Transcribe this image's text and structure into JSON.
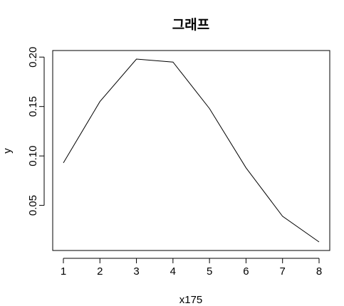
{
  "chart_data": {
    "type": "line",
    "title": "그래프",
    "xlabel": "x175",
    "ylabel": "y",
    "x": [
      1,
      2,
      3,
      4,
      5,
      6,
      7,
      8
    ],
    "series": [
      {
        "values": [
          0.093,
          0.155,
          0.198,
          0.195,
          0.148,
          0.088,
          0.039,
          0.013
        ]
      }
    ],
    "xlim": [
      1,
      8
    ],
    "ylim": [
      0.013,
      0.198
    ],
    "xticks": [
      1,
      2,
      3,
      4,
      5,
      6,
      7,
      8
    ],
    "xtick_labels": [
      "1",
      "2",
      "3",
      "4",
      "5",
      "6",
      "7",
      "8"
    ],
    "yticks": [
      0.05,
      0.1,
      0.15,
      0.2
    ],
    "ytick_labels": [
      "0.05",
      "0.10",
      "0.15",
      "0.20"
    ],
    "grid": false,
    "line_color": "#000000"
  }
}
